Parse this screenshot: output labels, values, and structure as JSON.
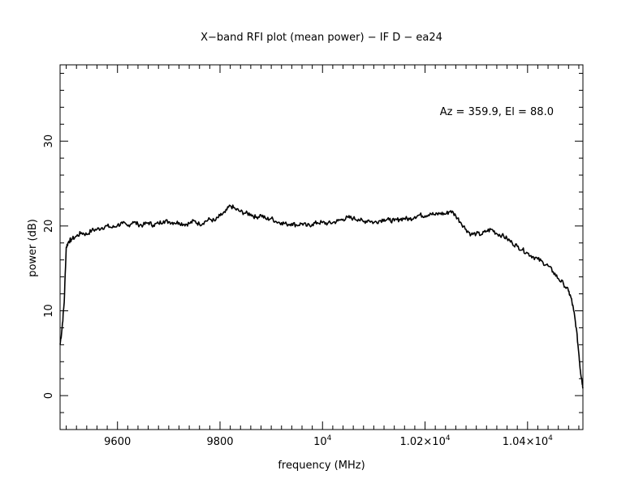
{
  "chart_data": {
    "type": "line",
    "title": "X−band RFI plot (mean power) − IF D − ea24",
    "annotation": "Az = 359.9, El = 88.0",
    "xlabel": "frequency (MHz)",
    "ylabel": "power (dB)",
    "xlim": [
      9488,
      10508
    ],
    "ylim": [
      -4,
      39
    ],
    "x_ticks": [
      {
        "value": 9600,
        "label": "9600"
      },
      {
        "value": 9800,
        "label": "9800"
      },
      {
        "value": 10000,
        "label": "10",
        "exp": "4"
      },
      {
        "value": 10200,
        "label": "1.02×10",
        "exp": "4"
      },
      {
        "value": 10400,
        "label": "1.04×10",
        "exp": "4"
      }
    ],
    "y_ticks": [
      {
        "value": 0,
        "label": "0"
      },
      {
        "value": 10,
        "label": "10"
      },
      {
        "value": 20,
        "label": "20"
      },
      {
        "value": 30,
        "label": "30"
      }
    ],
    "grid": false,
    "series": [
      {
        "x": [
          9488,
          9492,
          9496,
          9500,
          9505,
          9510,
          9520,
          9530,
          9540,
          9550,
          9560,
          9570,
          9580,
          9590,
          9600,
          9610,
          9620,
          9630,
          9640,
          9650,
          9660,
          9670,
          9680,
          9690,
          9700,
          9710,
          9720,
          9730,
          9740,
          9750,
          9760,
          9770,
          9780,
          9790,
          9800,
          9810,
          9820,
          9830,
          9840,
          9850,
          9860,
          9870,
          9880,
          9890,
          9900,
          9910,
          9920,
          9930,
          9940,
          9950,
          9960,
          9970,
          9980,
          9990,
          10000,
          10010,
          10020,
          10030,
          10040,
          10050,
          10060,
          10070,
          10080,
          10090,
          10100,
          10110,
          10120,
          10130,
          10140,
          10150,
          10160,
          10170,
          10180,
          10190,
          10200,
          10210,
          10220,
          10230,
          10240,
          10250,
          10260,
          10270,
          10280,
          10290,
          10300,
          10310,
          10320,
          10330,
          10340,
          10350,
          10360,
          10370,
          10380,
          10390,
          10400,
          10410,
          10420,
          10430,
          10440,
          10450,
          10460,
          10470,
          10480,
          10485,
          10490,
          10495,
          10500,
          10503,
          10506,
          10508
        ],
        "y": [
          6,
          8,
          11,
          17.5,
          18.2,
          18.4,
          18.8,
          19.2,
          19.0,
          19.5,
          19.6,
          19.8,
          20.0,
          19.8,
          20.1,
          20.3,
          20.0,
          20.5,
          20.2,
          20.1,
          20.4,
          20.1,
          20.3,
          20.6,
          20.5,
          20.4,
          20.4,
          20.2,
          20.3,
          20.6,
          20.2,
          20.5,
          20.8,
          20.6,
          21.2,
          21.6,
          22.4,
          22.0,
          21.7,
          21.5,
          21.4,
          21.0,
          21.3,
          20.8,
          20.9,
          20.5,
          20.4,
          20.2,
          20.3,
          20.1,
          20.3,
          20.0,
          20.2,
          20.4,
          20.4,
          20.3,
          20.4,
          20.6,
          20.8,
          21.0,
          20.9,
          20.8,
          20.5,
          20.7,
          20.4,
          20.6,
          20.8,
          20.7,
          20.6,
          20.8,
          20.9,
          20.8,
          21.1,
          21.3,
          21.2,
          21.5,
          21.3,
          21.5,
          21.4,
          21.8,
          21.2,
          20.4,
          19.6,
          19.0,
          19.1,
          19.0,
          19.4,
          19.6,
          19.1,
          18.9,
          18.5,
          18.0,
          17.6,
          17.2,
          16.8,
          16.4,
          16.1,
          15.7,
          15.3,
          14.6,
          13.8,
          13.2,
          12.3,
          11.5,
          10.0,
          8.0,
          5.0,
          3.0,
          1.8,
          1.0
        ]
      }
    ]
  }
}
